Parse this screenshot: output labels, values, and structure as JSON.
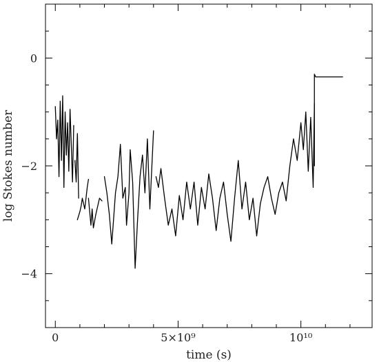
{
  "chart_data": {
    "type": "line",
    "title": "",
    "xlabel": "time (s)",
    "ylabel": "log Stokes number",
    "xlim": [
      -400000000.0,
      12900000000.0
    ],
    "ylim": [
      -5.0,
      1.0
    ],
    "x_ticks": [
      {
        "value": 0,
        "label": "0"
      },
      {
        "value": 5000000000.0,
        "label": "5×10⁹"
      },
      {
        "value": 10000000000.0,
        "label": "10¹⁰"
      }
    ],
    "y_ticks": [
      {
        "value": 0,
        "label": "0"
      },
      {
        "value": -2,
        "label": "−2"
      },
      {
        "value": -4,
        "label": "−4"
      }
    ],
    "grid": false,
    "series": [
      {
        "segments": [
          [
            [
              0.0,
              -0.9
            ],
            [
              50000000.0,
              -1.5
            ],
            [
              100000000.0,
              -1.15
            ],
            [
              150000000.0,
              -2.2
            ],
            [
              200000000.0,
              -0.8
            ],
            [
              250000000.0,
              -1.9
            ],
            [
              300000000.0,
              -0.7
            ],
            [
              350000000.0,
              -2.4
            ],
            [
              400000000.0,
              -1.0
            ],
            [
              450000000.0,
              -1.8
            ],
            [
              500000000.0,
              -1.2
            ],
            [
              550000000.0,
              -2.1
            ],
            [
              600000000.0,
              -0.95
            ],
            [
              650000000.0,
              -1.6
            ],
            [
              700000000.0,
              -2.3
            ],
            [
              750000000.0,
              -1.25
            ]
          ],
          [
            [
              800000000.0,
              -1.9
            ],
            [
              850000000.0,
              -2.3
            ],
            [
              900000000.0,
              -1.4
            ],
            [
              950000000.0,
              -2.6
            ]
          ],
          [
            [
              900000000.0,
              -3.0
            ],
            [
              1000000000.0,
              -2.85
            ],
            [
              1050000000.0,
              -2.75
            ],
            [
              1100000000.0,
              -2.6
            ],
            [
              1200000000.0,
              -2.8
            ],
            [
              1300000000.0,
              -2.4
            ],
            [
              1350000000.0,
              -2.25
            ]
          ],
          [
            [
              1350000000.0,
              -2.6
            ],
            [
              1450000000.0,
              -3.1
            ],
            [
              1500000000.0,
              -2.8
            ],
            [
              1550000000.0,
              -3.15
            ],
            [
              1650000000.0,
              -2.9
            ],
            [
              1800000000.0,
              -2.6
            ],
            [
              1900000000.0,
              -2.65
            ]
          ],
          [
            [
              2000000000.0,
              -2.2
            ],
            [
              2100000000.0,
              -2.5
            ],
            [
              2200000000.0,
              -2.9
            ],
            [
              2300000000.0,
              -3.45
            ],
            [
              2450000000.0,
              -2.5
            ],
            [
              2550000000.0,
              -2.2
            ],
            [
              2650000000.0,
              -1.6
            ],
            [
              2750000000.0,
              -2.6
            ],
            [
              2850000000.0,
              -2.4
            ],
            [
              2900000000.0,
              -3.1
            ],
            [
              3000000000.0,
              -2.5
            ],
            [
              3050000000.0,
              -1.7
            ],
            [
              3150000000.0,
              -2.3
            ],
            [
              3250000000.0,
              -3.9
            ],
            [
              3350000000.0,
              -3.0
            ],
            [
              3450000000.0,
              -2.2
            ],
            [
              3550000000.0,
              -1.8
            ],
            [
              3650000000.0,
              -2.5
            ],
            [
              3750000000.0,
              -1.5
            ],
            [
              3850000000.0,
              -2.8
            ],
            [
              4000000000.0,
              -1.35
            ]
          ],
          [
            [
              4100000000.0,
              -2.2
            ],
            [
              4200000000.0,
              -2.4
            ],
            [
              4300000000.0,
              -2.05
            ],
            [
              4450000000.0,
              -2.6
            ],
            [
              4600000000.0,
              -3.1
            ],
            [
              4750000000.0,
              -2.8
            ],
            [
              4900000000.0,
              -3.3
            ],
            [
              5050000000.0,
              -2.55
            ],
            [
              5200000000.0,
              -3.0
            ],
            [
              5350000000.0,
              -2.3
            ],
            [
              5500000000.0,
              -2.8
            ],
            [
              5650000000.0,
              -2.3
            ],
            [
              5800000000.0,
              -3.1
            ],
            [
              5950000000.0,
              -2.4
            ],
            [
              6100000000.0,
              -2.8
            ],
            [
              6250000000.0,
              -2.15
            ],
            [
              6400000000.0,
              -2.6
            ],
            [
              6550000000.0,
              -3.2
            ],
            [
              6700000000.0,
              -2.6
            ],
            [
              6850000000.0,
              -2.3
            ],
            [
              7000000000.0,
              -2.9
            ],
            [
              7150000000.0,
              -3.4
            ],
            [
              7300000000.0,
              -2.6
            ],
            [
              7450000000.0,
              -1.9
            ],
            [
              7600000000.0,
              -2.8
            ],
            [
              7750000000.0,
              -2.3
            ],
            [
              7900000000.0,
              -3.0
            ],
            [
              8050000000.0,
              -2.6
            ],
            [
              8200000000.0,
              -3.3
            ],
            [
              8350000000.0,
              -2.7
            ],
            [
              8500000000.0,
              -2.4
            ],
            [
              8650000000.0,
              -2.2
            ],
            [
              8800000000.0,
              -2.6
            ],
            [
              8950000000.0,
              -2.9
            ],
            [
              9100000000.0,
              -2.5
            ],
            [
              9250000000.0,
              -2.3
            ],
            [
              9400000000.0,
              -2.65
            ],
            [
              9550000000.0,
              -2.0
            ],
            [
              9700000000.0,
              -1.5
            ],
            [
              9850000000.0,
              -1.9
            ],
            [
              10000000000.0,
              -1.2
            ],
            [
              10100000000.0,
              -1.7
            ],
            [
              10200000000.0,
              -1.0
            ],
            [
              10300000000.0,
              -2.1
            ],
            [
              10400000000.0,
              -1.1
            ],
            [
              10500000000.0,
              -2.4
            ],
            [
              10550000000.0,
              -0.85
            ]
          ],
          [
            [
              10550000000.0,
              -2.0
            ],
            [
              10550000000.0,
              -0.3
            ],
            [
              10600000000.0,
              -0.35
            ],
            [
              11700000000.0,
              -0.35
            ]
          ]
        ]
      }
    ]
  }
}
